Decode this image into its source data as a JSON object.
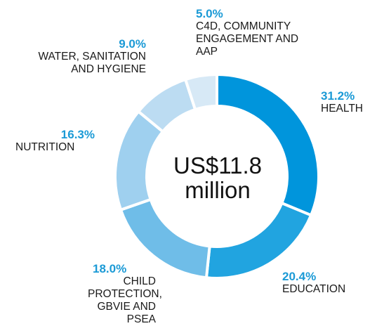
{
  "chart_data": {
    "type": "pie",
    "style": "donut",
    "center_label": {
      "line1": "US$11.8",
      "line2": "million"
    },
    "slices": [
      {
        "label": "HEALTH",
        "value": 31.2,
        "pct_text": "31.2%",
        "color": "#0095dc"
      },
      {
        "label": "EDUCATION",
        "value": 20.4,
        "pct_text": "20.4%",
        "color": "#21a4e0"
      },
      {
        "label": "CHILD\nPROTECTION,\nGBVIE AND PSEA",
        "value": 18.0,
        "pct_text": "18.0%",
        "color": "#6fbde8"
      },
      {
        "label": "NUTRITION",
        "value": 16.3,
        "pct_text": "16.3%",
        "color": "#9fd0ef"
      },
      {
        "label": "WATER, SANITATION\nAND HYGIENE",
        "value": 9.0,
        "pct_text": "9.0%",
        "color": "#bcdcf2"
      },
      {
        "label": "C4D, COMMUNITY\nENGAGEMENT AND\nAAP",
        "value": 5.0,
        "pct_text": "5.0%",
        "color": "#d7e9f6"
      }
    ]
  }
}
